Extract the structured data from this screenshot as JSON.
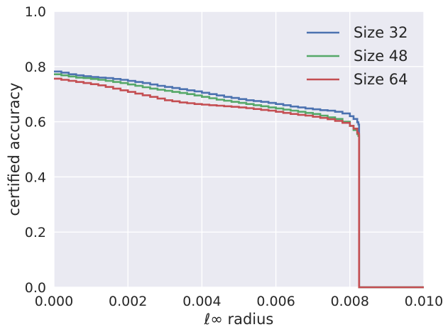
{
  "chart_data": {
    "type": "line",
    "title": "",
    "xlabel": "ℓ∞ radius",
    "ylabel": "certified accuracy",
    "xlim": [
      0.0,
      0.01
    ],
    "ylim": [
      0.0,
      1.0
    ],
    "xticks": [
      "0.000",
      "0.002",
      "0.004",
      "0.006",
      "0.008",
      "0.010"
    ],
    "yticks": [
      "0.0",
      "0.2",
      "0.4",
      "0.6",
      "0.8",
      "1.0"
    ],
    "grid": true,
    "legend_position": "top-right",
    "background_color": "#EAEAF2",
    "series": [
      {
        "name": "Size 32",
        "color": "#4C72B0",
        "x": [
          0.0,
          0.0002,
          0.0004,
          0.0006,
          0.0008,
          0.001,
          0.0012,
          0.0014,
          0.0016,
          0.0018,
          0.002,
          0.0022,
          0.0024,
          0.0026,
          0.0028,
          0.003,
          0.0032,
          0.0034,
          0.0036,
          0.0038,
          0.004,
          0.0042,
          0.0044,
          0.0046,
          0.0048,
          0.005,
          0.0052,
          0.0054,
          0.0056,
          0.0058,
          0.006,
          0.0062,
          0.0064,
          0.0066,
          0.0068,
          0.007,
          0.0072,
          0.0074,
          0.0076,
          0.0078,
          0.008,
          0.0081,
          0.0082,
          0.00823,
          0.00825,
          0.01
        ],
        "y": [
          0.782,
          0.778,
          0.772,
          0.768,
          0.765,
          0.762,
          0.76,
          0.758,
          0.755,
          0.752,
          0.748,
          0.744,
          0.74,
          0.735,
          0.73,
          0.726,
          0.722,
          0.718,
          0.714,
          0.71,
          0.705,
          0.7,
          0.695,
          0.69,
          0.686,
          0.682,
          0.678,
          0.675,
          0.672,
          0.668,
          0.664,
          0.66,
          0.655,
          0.652,
          0.648,
          0.645,
          0.642,
          0.64,
          0.636,
          0.63,
          0.62,
          0.61,
          0.598,
          0.59,
          0.0,
          0.0
        ]
      },
      {
        "name": "Size 48",
        "color": "#55A868",
        "x": [
          0.0,
          0.0002,
          0.0004,
          0.0006,
          0.0008,
          0.001,
          0.0012,
          0.0014,
          0.0016,
          0.0018,
          0.002,
          0.0022,
          0.0024,
          0.0026,
          0.0028,
          0.003,
          0.0032,
          0.0034,
          0.0036,
          0.0038,
          0.004,
          0.0042,
          0.0044,
          0.0046,
          0.0048,
          0.005,
          0.0052,
          0.0054,
          0.0056,
          0.0058,
          0.006,
          0.0062,
          0.0064,
          0.0066,
          0.0068,
          0.007,
          0.0072,
          0.0074,
          0.0076,
          0.0078,
          0.008,
          0.0081,
          0.0082,
          0.00823,
          0.00825,
          0.01
        ],
        "y": [
          0.772,
          0.768,
          0.764,
          0.76,
          0.758,
          0.755,
          0.752,
          0.748,
          0.744,
          0.74,
          0.735,
          0.73,
          0.725,
          0.72,
          0.716,
          0.712,
          0.708,
          0.704,
          0.7,
          0.695,
          0.69,
          0.685,
          0.68,
          0.676,
          0.672,
          0.668,
          0.664,
          0.66,
          0.656,
          0.652,
          0.648,
          0.644,
          0.64,
          0.636,
          0.632,
          0.628,
          0.622,
          0.616,
          0.61,
          0.6,
          0.585,
          0.57,
          0.555,
          0.548,
          0.0,
          0.0
        ]
      },
      {
        "name": "Size 64",
        "color": "#C44E52",
        "x": [
          0.0,
          0.0002,
          0.0004,
          0.0006,
          0.0008,
          0.001,
          0.0012,
          0.0014,
          0.0016,
          0.0018,
          0.002,
          0.0022,
          0.0024,
          0.0026,
          0.0028,
          0.003,
          0.0032,
          0.0034,
          0.0036,
          0.0038,
          0.004,
          0.0042,
          0.0044,
          0.0046,
          0.0048,
          0.005,
          0.0052,
          0.0054,
          0.0056,
          0.0058,
          0.006,
          0.0062,
          0.0064,
          0.0066,
          0.0068,
          0.007,
          0.0072,
          0.0074,
          0.0076,
          0.0078,
          0.008,
          0.0081,
          0.0082,
          0.00823,
          0.00825,
          0.01
        ],
        "y": [
          0.756,
          0.752,
          0.748,
          0.744,
          0.74,
          0.736,
          0.732,
          0.726,
          0.72,
          0.714,
          0.708,
          0.702,
          0.696,
          0.69,
          0.684,
          0.678,
          0.674,
          0.67,
          0.667,
          0.664,
          0.662,
          0.66,
          0.658,
          0.656,
          0.654,
          0.652,
          0.649,
          0.646,
          0.643,
          0.64,
          0.636,
          0.632,
          0.628,
          0.625,
          0.622,
          0.618,
          0.614,
          0.609,
          0.603,
          0.596,
          0.585,
          0.575,
          0.56,
          0.555,
          0.0,
          0.0
        ]
      }
    ]
  }
}
